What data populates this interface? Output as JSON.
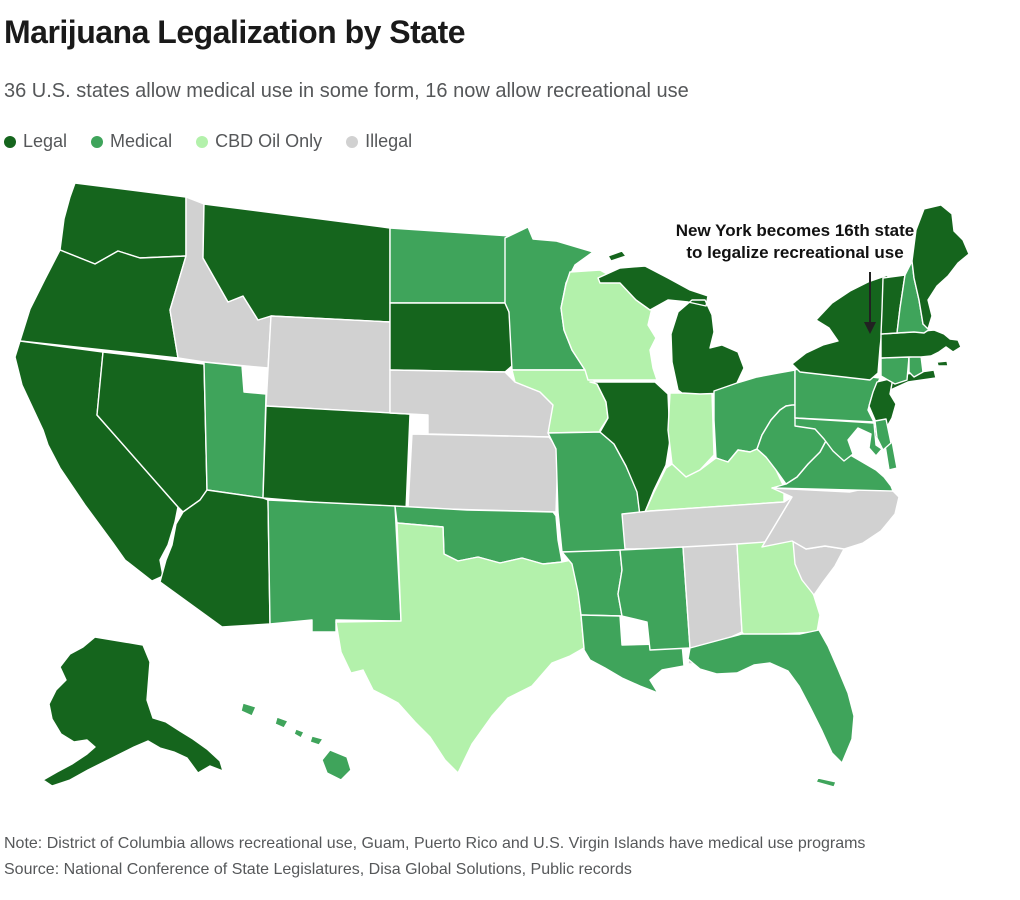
{
  "header": {
    "title": "Marijuana Legalization by State",
    "subtitle": "36 U.S. states allow medical use in some form, 16 now allow recreational use"
  },
  "legend": [
    {
      "key": "legal",
      "label": "Legal"
    },
    {
      "key": "medical",
      "label": "Medical"
    },
    {
      "key": "cbd",
      "label": "CBD Oil Only"
    },
    {
      "key": "illegal",
      "label": "Illegal"
    }
  ],
  "colors": {
    "legal": "#15651d",
    "medical": "#3fa45b",
    "cbd": "#b3f1ab",
    "illegal": "#d1d1d1",
    "border": "#ffffff",
    "annotation": "#1a1a1a"
  },
  "annotation": {
    "line1": "New York becomes 16th state",
    "line2": "to legalize recreational use"
  },
  "map": {
    "states": {
      "AK": "legal",
      "HI": "medical",
      "WA": "legal",
      "OR": "legal",
      "CA": "legal",
      "NV": "legal",
      "ID": "illegal",
      "MT": "legal",
      "WY": "illegal",
      "UT": "medical",
      "CO": "legal",
      "AZ": "legal",
      "NM": "medical",
      "ND": "medical",
      "SD": "legal",
      "NE": "illegal",
      "KS": "illegal",
      "OK": "medical",
      "TX": "cbd",
      "MN": "medical",
      "IA": "cbd",
      "MO": "medical",
      "AR": "medical",
      "LA": "medical",
      "WI": "cbd",
      "IL": "legal",
      "IN": "cbd",
      "MI": "legal",
      "OH": "medical",
      "KY": "cbd",
      "TN": "illegal",
      "MS": "medical",
      "AL": "illegal",
      "GA": "cbd",
      "FL": "medical",
      "SC": "illegal",
      "NC": "illegal",
      "VA": "medical",
      "WV": "medical",
      "PA": "medical",
      "NY": "legal",
      "NJ": "legal",
      "DE": "medical",
      "MD": "medical",
      "CT": "medical",
      "RI": "medical",
      "MA": "legal",
      "VT": "legal",
      "NH": "medical",
      "ME": "legal"
    }
  },
  "footer": {
    "note": "Note: District of Columbia allows recreational use, Guam, Puerto Rico and U.S. Virgin Islands have medical use programs",
    "source": "Source: National Conference of State Legislatures, Disa Global Solutions, Public records"
  },
  "chart_data": {
    "type": "choropleth",
    "title": "Marijuana Legalization by State",
    "categories": [
      "Legal",
      "Medical",
      "CBD Oil Only",
      "Illegal"
    ],
    "counts": {
      "Legal": 16,
      "Medical": 20,
      "CBD Oil Only": 6,
      "Illegal": 8
    },
    "series": {
      "Legal": [
        "WA",
        "OR",
        "CA",
        "NV",
        "AK",
        "MT",
        "CO",
        "AZ",
        "SD",
        "IL",
        "MI",
        "NY",
        "NJ",
        "MA",
        "VT",
        "ME"
      ],
      "Medical": [
        "HI",
        "UT",
        "NM",
        "ND",
        "OK",
        "MN",
        "MO",
        "AR",
        "LA",
        "OH",
        "MS",
        "FL",
        "VA",
        "WV",
        "PA",
        "DE",
        "MD",
        "CT",
        "RI",
        "NH"
      ],
      "CBD Oil Only": [
        "TX",
        "IA",
        "WI",
        "IN",
        "KY",
        "GA"
      ],
      "Illegal": [
        "ID",
        "WY",
        "NE",
        "KS",
        "TN",
        "AL",
        "SC",
        "NC"
      ]
    }
  }
}
